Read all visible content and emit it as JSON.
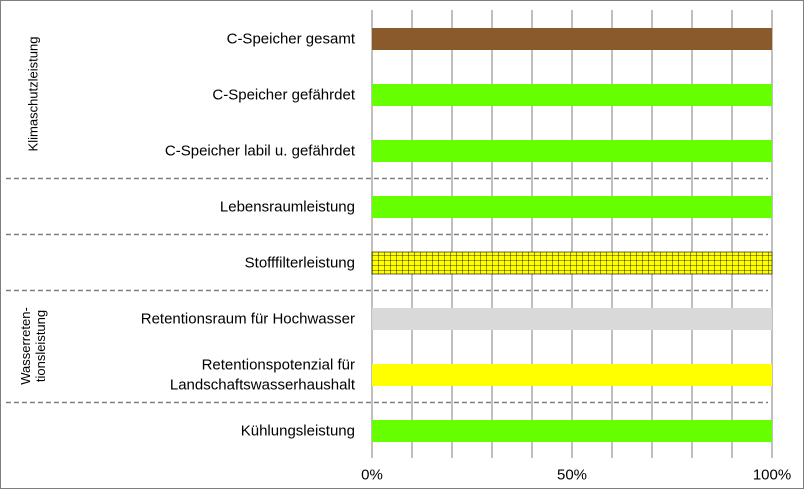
{
  "chart_data": {
    "type": "bar",
    "orientation": "horizontal",
    "categories": [
      "C-Speicher gesamt",
      "C-Speicher gefährdet",
      "C-Speicher labil u. gefährdet",
      "Lebensraumleistung",
      "Stofffilterleistung",
      "Retentionsraum für Hochwasser",
      "Retentionspotenzial für Landschaftswasserhaushalt",
      "Kühlungsleistung"
    ],
    "category_lines": [
      [
        "C-Speicher gesamt"
      ],
      [
        "C-Speicher gefährdet"
      ],
      [
        "C-Speicher labil u. gefährdet"
      ],
      [
        "Lebensraumleistung"
      ],
      [
        "Stofffilterleistung"
      ],
      [
        "Retentionsraum für Hochwasser"
      ],
      [
        "Retentionspotenzial für",
        "Landschaftswasserhaushalt"
      ],
      [
        "Kühlungsleistung"
      ]
    ],
    "values": [
      1.0,
      1.0,
      1.0,
      1.0,
      1.0,
      1.0,
      1.0,
      1.0
    ],
    "bar_colors": [
      "#8b5a2b",
      "#66ff00",
      "#66ff00",
      "#66ff00",
      "#ffff00",
      "#d9d9d9",
      "#ffff00",
      "#66ff00"
    ],
    "bar_patterns": [
      "",
      "",
      "",
      "",
      "grid",
      "",
      "",
      ""
    ],
    "xlim": [
      0,
      1
    ],
    "x_ticks": [
      0,
      0.5,
      1
    ],
    "x_tick_labels": [
      "0%",
      "50%",
      "100%"
    ],
    "gridlines": [
      0,
      0.1,
      0.2,
      0.3,
      0.4,
      0.5,
      0.6,
      0.7,
      0.8,
      0.9,
      1.0
    ],
    "grid": true,
    "groups": [
      {
        "lines": [
          "Klimaschutzleistung"
        ],
        "start": 0,
        "end": 2
      },
      {
        "lines": [
          "Wasserreten-",
          "tionsleistung"
        ],
        "start": 5,
        "end": 6
      }
    ],
    "separators_after": [
      2,
      3,
      4,
      6
    ],
    "title": "",
    "xlabel": "",
    "ylabel": ""
  }
}
